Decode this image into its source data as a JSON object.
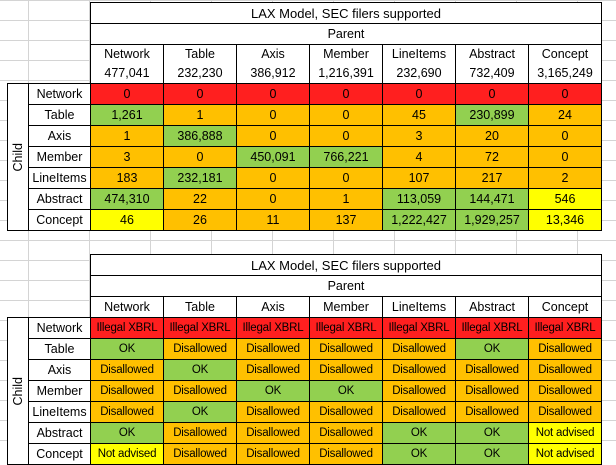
{
  "table1": {
    "title": "LAX Model, SEC filers supported",
    "parent_label": "Parent",
    "child_label": "Child",
    "columns": [
      {
        "name": "Network",
        "count": "477,041"
      },
      {
        "name": "Table",
        "count": "232,230"
      },
      {
        "name": "Axis",
        "count": "386,912"
      },
      {
        "name": "Member",
        "count": "1,216,391"
      },
      {
        "name": "LineItems",
        "count": "232,690"
      },
      {
        "name": "Abstract",
        "count": "732,409"
      },
      {
        "name": "Concept",
        "count": "3,165,249"
      }
    ],
    "rows": [
      {
        "label": "Network",
        "cells": [
          {
            "v": "0",
            "color": "#ff1f1f"
          },
          {
            "v": "0",
            "color": "#ff1f1f"
          },
          {
            "v": "0",
            "color": "#ff1f1f"
          },
          {
            "v": "0",
            "color": "#ff1f1f"
          },
          {
            "v": "0",
            "color": "#ff1f1f"
          },
          {
            "v": "0",
            "color": "#ff1f1f"
          },
          {
            "v": "0",
            "color": "#ff1f1f"
          }
        ]
      },
      {
        "label": "Table",
        "cells": [
          {
            "v": "1,261",
            "color": "#92d050"
          },
          {
            "v": "1",
            "color": "#ffc000"
          },
          {
            "v": "0",
            "color": "#ffc000"
          },
          {
            "v": "0",
            "color": "#ffc000"
          },
          {
            "v": "45",
            "color": "#ffc000"
          },
          {
            "v": "230,899",
            "color": "#92d050"
          },
          {
            "v": "24",
            "color": "#ffc000"
          }
        ]
      },
      {
        "label": "Axis",
        "cells": [
          {
            "v": "1",
            "color": "#ffc000"
          },
          {
            "v": "386,888",
            "color": "#92d050"
          },
          {
            "v": "0",
            "color": "#ffc000"
          },
          {
            "v": "0",
            "color": "#ffc000"
          },
          {
            "v": "3",
            "color": "#ffc000"
          },
          {
            "v": "20",
            "color": "#ffc000"
          },
          {
            "v": "0",
            "color": "#ffc000"
          }
        ]
      },
      {
        "label": "Member",
        "cells": [
          {
            "v": "3",
            "color": "#ffc000"
          },
          {
            "v": "0",
            "color": "#ffc000"
          },
          {
            "v": "450,091",
            "color": "#92d050"
          },
          {
            "v": "766,221",
            "color": "#92d050"
          },
          {
            "v": "4",
            "color": "#ffc000"
          },
          {
            "v": "72",
            "color": "#ffc000"
          },
          {
            "v": "0",
            "color": "#ffc000"
          }
        ]
      },
      {
        "label": "LineItems",
        "cells": [
          {
            "v": "183",
            "color": "#ffc000"
          },
          {
            "v": "232,181",
            "color": "#92d050"
          },
          {
            "v": "0",
            "color": "#ffc000"
          },
          {
            "v": "0",
            "color": "#ffc000"
          },
          {
            "v": "107",
            "color": "#ffc000"
          },
          {
            "v": "217",
            "color": "#ffc000"
          },
          {
            "v": "2",
            "color": "#ffc000"
          }
        ]
      },
      {
        "label": "Abstract",
        "cells": [
          {
            "v": "474,310",
            "color": "#92d050"
          },
          {
            "v": "22",
            "color": "#ffc000"
          },
          {
            "v": "0",
            "color": "#ffc000"
          },
          {
            "v": "1",
            "color": "#ffc000"
          },
          {
            "v": "113,059",
            "color": "#92d050"
          },
          {
            "v": "144,471",
            "color": "#92d050"
          },
          {
            "v": "546",
            "color": "#ffff00"
          }
        ]
      },
      {
        "label": "Concept",
        "cells": [
          {
            "v": "46",
            "color": "#ffff00"
          },
          {
            "v": "26",
            "color": "#ffc000"
          },
          {
            "v": "11",
            "color": "#ffc000"
          },
          {
            "v": "137",
            "color": "#ffc000"
          },
          {
            "v": "1,222,427",
            "color": "#92d050"
          },
          {
            "v": "1,929,257",
            "color": "#92d050"
          },
          {
            "v": "13,346",
            "color": "#ffff00"
          }
        ]
      }
    ]
  },
  "table2": {
    "title": "LAX Model, SEC filers supported",
    "parent_label": "Parent",
    "child_label": "Child",
    "columns": [
      "Network",
      "Table",
      "Axis",
      "Member",
      "LineItems",
      "Abstract",
      "Concept"
    ],
    "rows": [
      {
        "label": "Network",
        "cells": [
          {
            "v": "Illegal XBRL",
            "color": "#ff1f1f"
          },
          {
            "v": "Illegal XBRL",
            "color": "#ff1f1f"
          },
          {
            "v": "Illegal XBRL",
            "color": "#ff1f1f"
          },
          {
            "v": "Illegal XBRL",
            "color": "#ff1f1f"
          },
          {
            "v": "Illegal XBRL",
            "color": "#ff1f1f"
          },
          {
            "v": "Illegal XBRL",
            "color": "#ff1f1f"
          },
          {
            "v": "Illegal XBRL",
            "color": "#ff1f1f"
          }
        ]
      },
      {
        "label": "Table",
        "cells": [
          {
            "v": "OK",
            "color": "#92d050"
          },
          {
            "v": "Disallowed",
            "color": "#ffc000"
          },
          {
            "v": "Disallowed",
            "color": "#ffc000"
          },
          {
            "v": "Disallowed",
            "color": "#ffc000"
          },
          {
            "v": "Disallowed",
            "color": "#ffc000"
          },
          {
            "v": "OK",
            "color": "#92d050"
          },
          {
            "v": "Disallowed",
            "color": "#ffc000"
          }
        ]
      },
      {
        "label": "Axis",
        "cells": [
          {
            "v": "Disallowed",
            "color": "#ffc000"
          },
          {
            "v": "OK",
            "color": "#92d050"
          },
          {
            "v": "Disallowed",
            "color": "#ffc000"
          },
          {
            "v": "Disallowed",
            "color": "#ffc000"
          },
          {
            "v": "Disallowed",
            "color": "#ffc000"
          },
          {
            "v": "Disallowed",
            "color": "#ffc000"
          },
          {
            "v": "Disallowed",
            "color": "#ffc000"
          }
        ]
      },
      {
        "label": "Member",
        "cells": [
          {
            "v": "Disallowed",
            "color": "#ffc000"
          },
          {
            "v": "Disallowed",
            "color": "#ffc000"
          },
          {
            "v": "OK",
            "color": "#92d050"
          },
          {
            "v": "OK",
            "color": "#92d050"
          },
          {
            "v": "Disallowed",
            "color": "#ffc000"
          },
          {
            "v": "Disallowed",
            "color": "#ffc000"
          },
          {
            "v": "Disallowed",
            "color": "#ffc000"
          }
        ]
      },
      {
        "label": "LineItems",
        "cells": [
          {
            "v": "Disallowed",
            "color": "#ffc000"
          },
          {
            "v": "OK",
            "color": "#92d050"
          },
          {
            "v": "Disallowed",
            "color": "#ffc000"
          },
          {
            "v": "Disallowed",
            "color": "#ffc000"
          },
          {
            "v": "Disallowed",
            "color": "#ffc000"
          },
          {
            "v": "Disallowed",
            "color": "#ffc000"
          },
          {
            "v": "Disallowed",
            "color": "#ffc000"
          }
        ]
      },
      {
        "label": "Abstract",
        "cells": [
          {
            "v": "OK",
            "color": "#92d050"
          },
          {
            "v": "Disallowed",
            "color": "#ffc000"
          },
          {
            "v": "Disallowed",
            "color": "#ffc000"
          },
          {
            "v": "Disallowed",
            "color": "#ffc000"
          },
          {
            "v": "OK",
            "color": "#92d050"
          },
          {
            "v": "OK",
            "color": "#92d050"
          },
          {
            "v": "Not advised",
            "color": "#ffff00"
          }
        ]
      },
      {
        "label": "Concept",
        "cells": [
          {
            "v": "Not advised",
            "color": "#ffff00"
          },
          {
            "v": "Disallowed",
            "color": "#ffc000"
          },
          {
            "v": "Disallowed",
            "color": "#ffc000"
          },
          {
            "v": "Disallowed",
            "color": "#ffc000"
          },
          {
            "v": "OK",
            "color": "#92d050"
          },
          {
            "v": "OK",
            "color": "#92d050"
          },
          {
            "v": "Not advised",
            "color": "#ffff00"
          }
        ]
      }
    ]
  }
}
